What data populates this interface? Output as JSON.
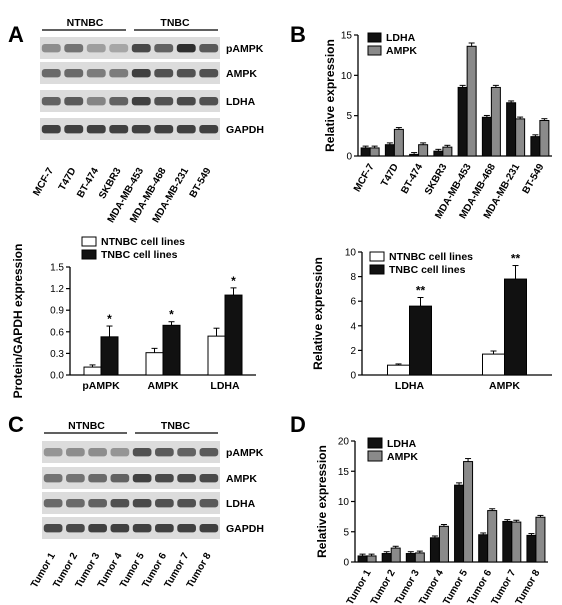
{
  "panels": {
    "A": {
      "letter": "A",
      "group_labels": [
        "NTNBC",
        "TNBC"
      ],
      "blot_labels": [
        "pAMPK",
        "AMPK",
        "LDHA",
        "GAPDH"
      ],
      "lane_labels": [
        "MCF-7",
        "T47D",
        "BT-474",
        "SKBR3",
        "MDA-MB-453",
        "MDA-MB-468",
        "MDA-MB-231",
        "BT-549"
      ]
    },
    "B": {
      "letter": "B"
    },
    "C": {
      "letter": "C",
      "group_labels": [
        "NTNBC",
        "TNBC"
      ],
      "blot_labels": [
        "pAMPK",
        "AMPK",
        "LDHA",
        "GAPDH"
      ],
      "lane_labels": [
        "Tumor 1",
        "Tumor 2",
        "Tumor 3",
        "Tumor 4",
        "Tumor 5",
        "Tumor 6",
        "Tumor 7",
        "Tumor 8"
      ]
    },
    "D": {
      "letter": "D"
    }
  },
  "chart_data": [
    {
      "id": "B_top",
      "type": "bar",
      "ylabel": "Relative expression",
      "ylim": [
        0,
        15
      ],
      "yticks": [
        0,
        5,
        10,
        15
      ],
      "categories": [
        "MCF-7",
        "T47D",
        "BT-474",
        "SKBR3",
        "MDA-MB-453",
        "MDA-MB-468",
        "MDA-MB-231",
        "BT-549"
      ],
      "series": [
        {
          "name": "LDHA",
          "values": [
            1.0,
            1.4,
            0.2,
            0.6,
            8.5,
            4.8,
            6.6,
            2.4
          ],
          "color": "#111111"
        },
        {
          "name": "AMPK",
          "values": [
            1.0,
            3.3,
            1.4,
            1.1,
            13.6,
            8.5,
            4.6,
            4.4
          ],
          "color": "#8a8a8a"
        }
      ],
      "legend": "top-left"
    },
    {
      "id": "A_bottom",
      "type": "bar",
      "ylabel": "Protein/GAPDH expression",
      "ylim": [
        0,
        1.5
      ],
      "yticks": [
        "0.0",
        "0.3",
        "0.6",
        "0.9",
        "1.2",
        "1.5"
      ],
      "categories": [
        "pAMPK",
        "AMPK",
        "LDHA"
      ],
      "series": [
        {
          "name": "NTNBC cell lines",
          "values": [
            0.11,
            0.31,
            0.54
          ],
          "errors": [
            0.03,
            0.06,
            0.11
          ],
          "color": "#ffffff"
        },
        {
          "name": "TNBC cell lines",
          "values": [
            0.53,
            0.69,
            1.11
          ],
          "errors": [
            0.15,
            0.05,
            0.1
          ],
          "color": "#111111"
        }
      ],
      "annotations": [
        "*",
        "*",
        "*"
      ],
      "legend": "top-left"
    },
    {
      "id": "B_bottom",
      "type": "bar",
      "ylabel": "Relative expression",
      "ylim": [
        0,
        10
      ],
      "yticks": [
        0,
        2,
        4,
        6,
        8,
        10
      ],
      "categories": [
        "LDHA",
        "AMPK"
      ],
      "series": [
        {
          "name": "NTNBC cell lines",
          "values": [
            0.8,
            1.7
          ],
          "errors": [
            0.1,
            0.25
          ],
          "color": "#ffffff"
        },
        {
          "name": "TNBC cell lines",
          "values": [
            5.6,
            7.8
          ],
          "errors": [
            0.7,
            1.1
          ],
          "color": "#111111"
        }
      ],
      "annotations": [
        "**",
        "**"
      ],
      "legend": "top-left"
    },
    {
      "id": "D",
      "type": "bar",
      "ylabel": "Relative expression",
      "ylim": [
        0,
        20
      ],
      "yticks": [
        0,
        5,
        10,
        15,
        20
      ],
      "categories": [
        "Tumor 1",
        "Tumor 2",
        "Tumor 3",
        "Tumor 4",
        "Tumor 5",
        "Tumor 6",
        "Tumor 7",
        "Tumor 8"
      ],
      "series": [
        {
          "name": "LDHA",
          "values": [
            1.0,
            1.4,
            1.4,
            4.0,
            12.7,
            4.5,
            6.7,
            4.4
          ],
          "color": "#111111"
        },
        {
          "name": "AMPK",
          "values": [
            1.0,
            2.3,
            1.5,
            5.9,
            16.6,
            8.5,
            6.6,
            7.4
          ],
          "color": "#8a8a8a"
        }
      ],
      "legend": "top-left"
    }
  ]
}
